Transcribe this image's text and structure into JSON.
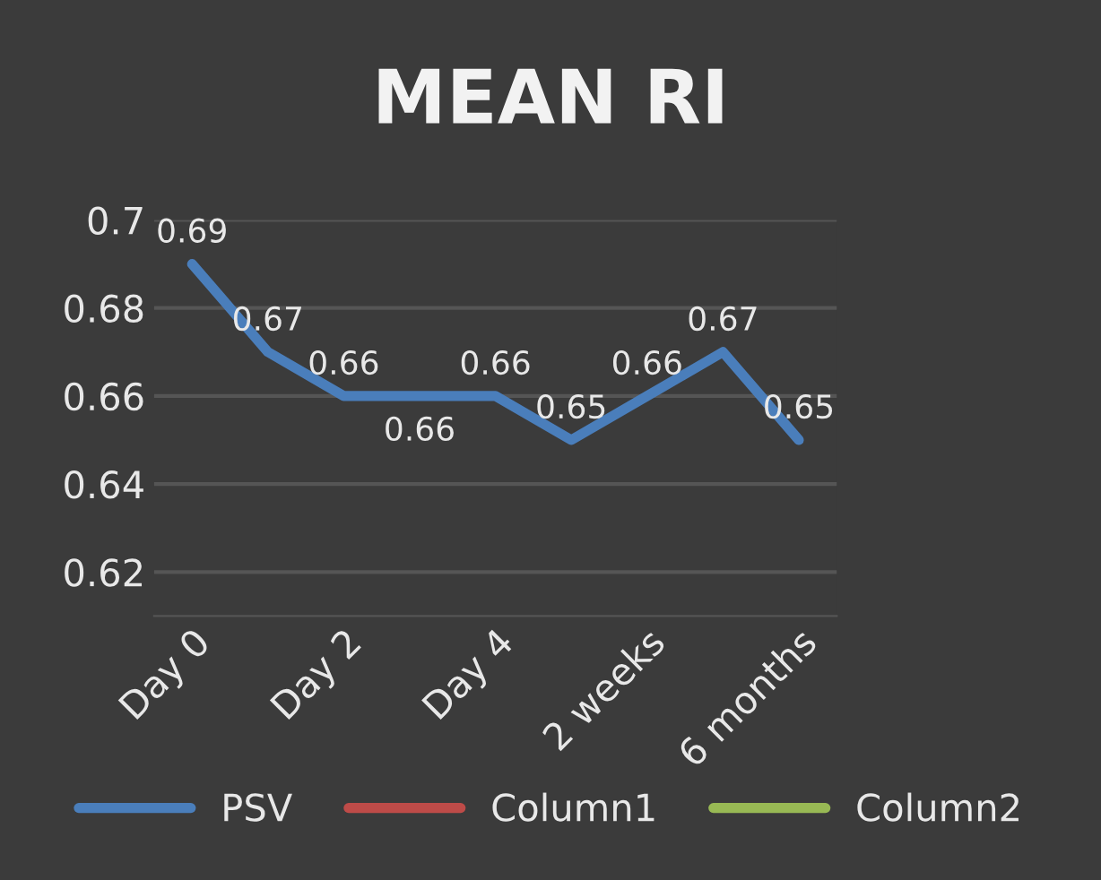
{
  "chart_data": {
    "type": "line",
    "title": "MEAN RI",
    "categories": [
      "Day 0",
      null,
      "Day 2",
      null,
      "Day 4",
      null,
      "2 weeks",
      null,
      "6 months"
    ],
    "series": [
      {
        "name": "PSV",
        "color": "#4a7ebb",
        "values": [
          0.69,
          0.67,
          0.66,
          0.66,
          0.66,
          0.65,
          0.66,
          0.67,
          0.65
        ]
      },
      {
        "name": "Column1",
        "color": "#be4b48",
        "values": [
          null,
          null,
          null,
          null,
          null,
          null,
          null,
          null,
          null
        ]
      },
      {
        "name": "Column2",
        "color": "#98b954",
        "values": [
          null,
          null,
          null,
          null,
          null,
          null,
          null,
          null,
          null
        ]
      }
    ],
    "ylim": [
      0.61,
      0.7
    ],
    "yticks": [
      0.62,
      0.64,
      0.66,
      0.68,
      0.7
    ],
    "grid": "y",
    "legend": "bottom",
    "data_labels": true
  }
}
